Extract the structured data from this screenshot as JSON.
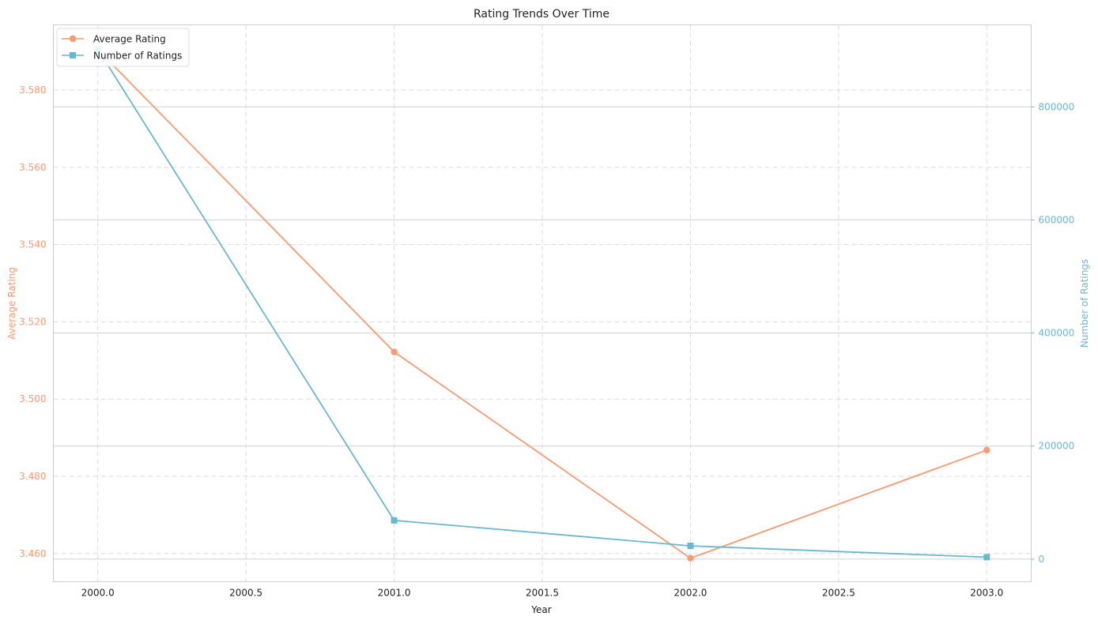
{
  "chart_data": {
    "type": "line",
    "title": "Rating Trends Over Time",
    "xlabel": "Year",
    "ylabel_left": "Average Rating",
    "ylabel_right": "Number of Ratings",
    "x": [
      2000,
      2001,
      2002,
      2003
    ],
    "xlim": [
      1999.85,
      2003.15
    ],
    "xticks": [
      2000.0,
      2000.5,
      2001.0,
      2001.5,
      2002.0,
      2002.5,
      2003.0
    ],
    "xtick_labels": [
      "2000.0",
      "2000.5",
      "2001.0",
      "2001.5",
      "2002.0",
      "2002.5",
      "2003.0"
    ],
    "ylim_left": [
      3.4527,
      3.5969
    ],
    "yticks_left": [
      3.46,
      3.48,
      3.5,
      3.52,
      3.54,
      3.56,
      3.58
    ],
    "ytick_labels_left": [
      "3.460",
      "3.480",
      "3.500",
      "3.520",
      "3.540",
      "3.560",
      "3.580"
    ],
    "ylim_right": [
      -40000,
      945000
    ],
    "yticks_right": [
      0,
      200000,
      400000,
      600000,
      800000
    ],
    "ytick_labels_right": [
      "0",
      "200000",
      "400000",
      "600000",
      "800000"
    ],
    "grid": true,
    "legend_position": "top-left",
    "series": [
      {
        "name": "Average Rating",
        "axis": "left",
        "marker": "circle",
        "color": "#fc9a72",
        "values": [
          3.5905,
          3.5122,
          3.4588,
          3.4868
        ]
      },
      {
        "name": "Number of Ratings",
        "axis": "right",
        "marker": "square",
        "color": "#69b8d1",
        "values": [
          902000,
          68500,
          23500,
          3500
        ]
      }
    ]
  }
}
